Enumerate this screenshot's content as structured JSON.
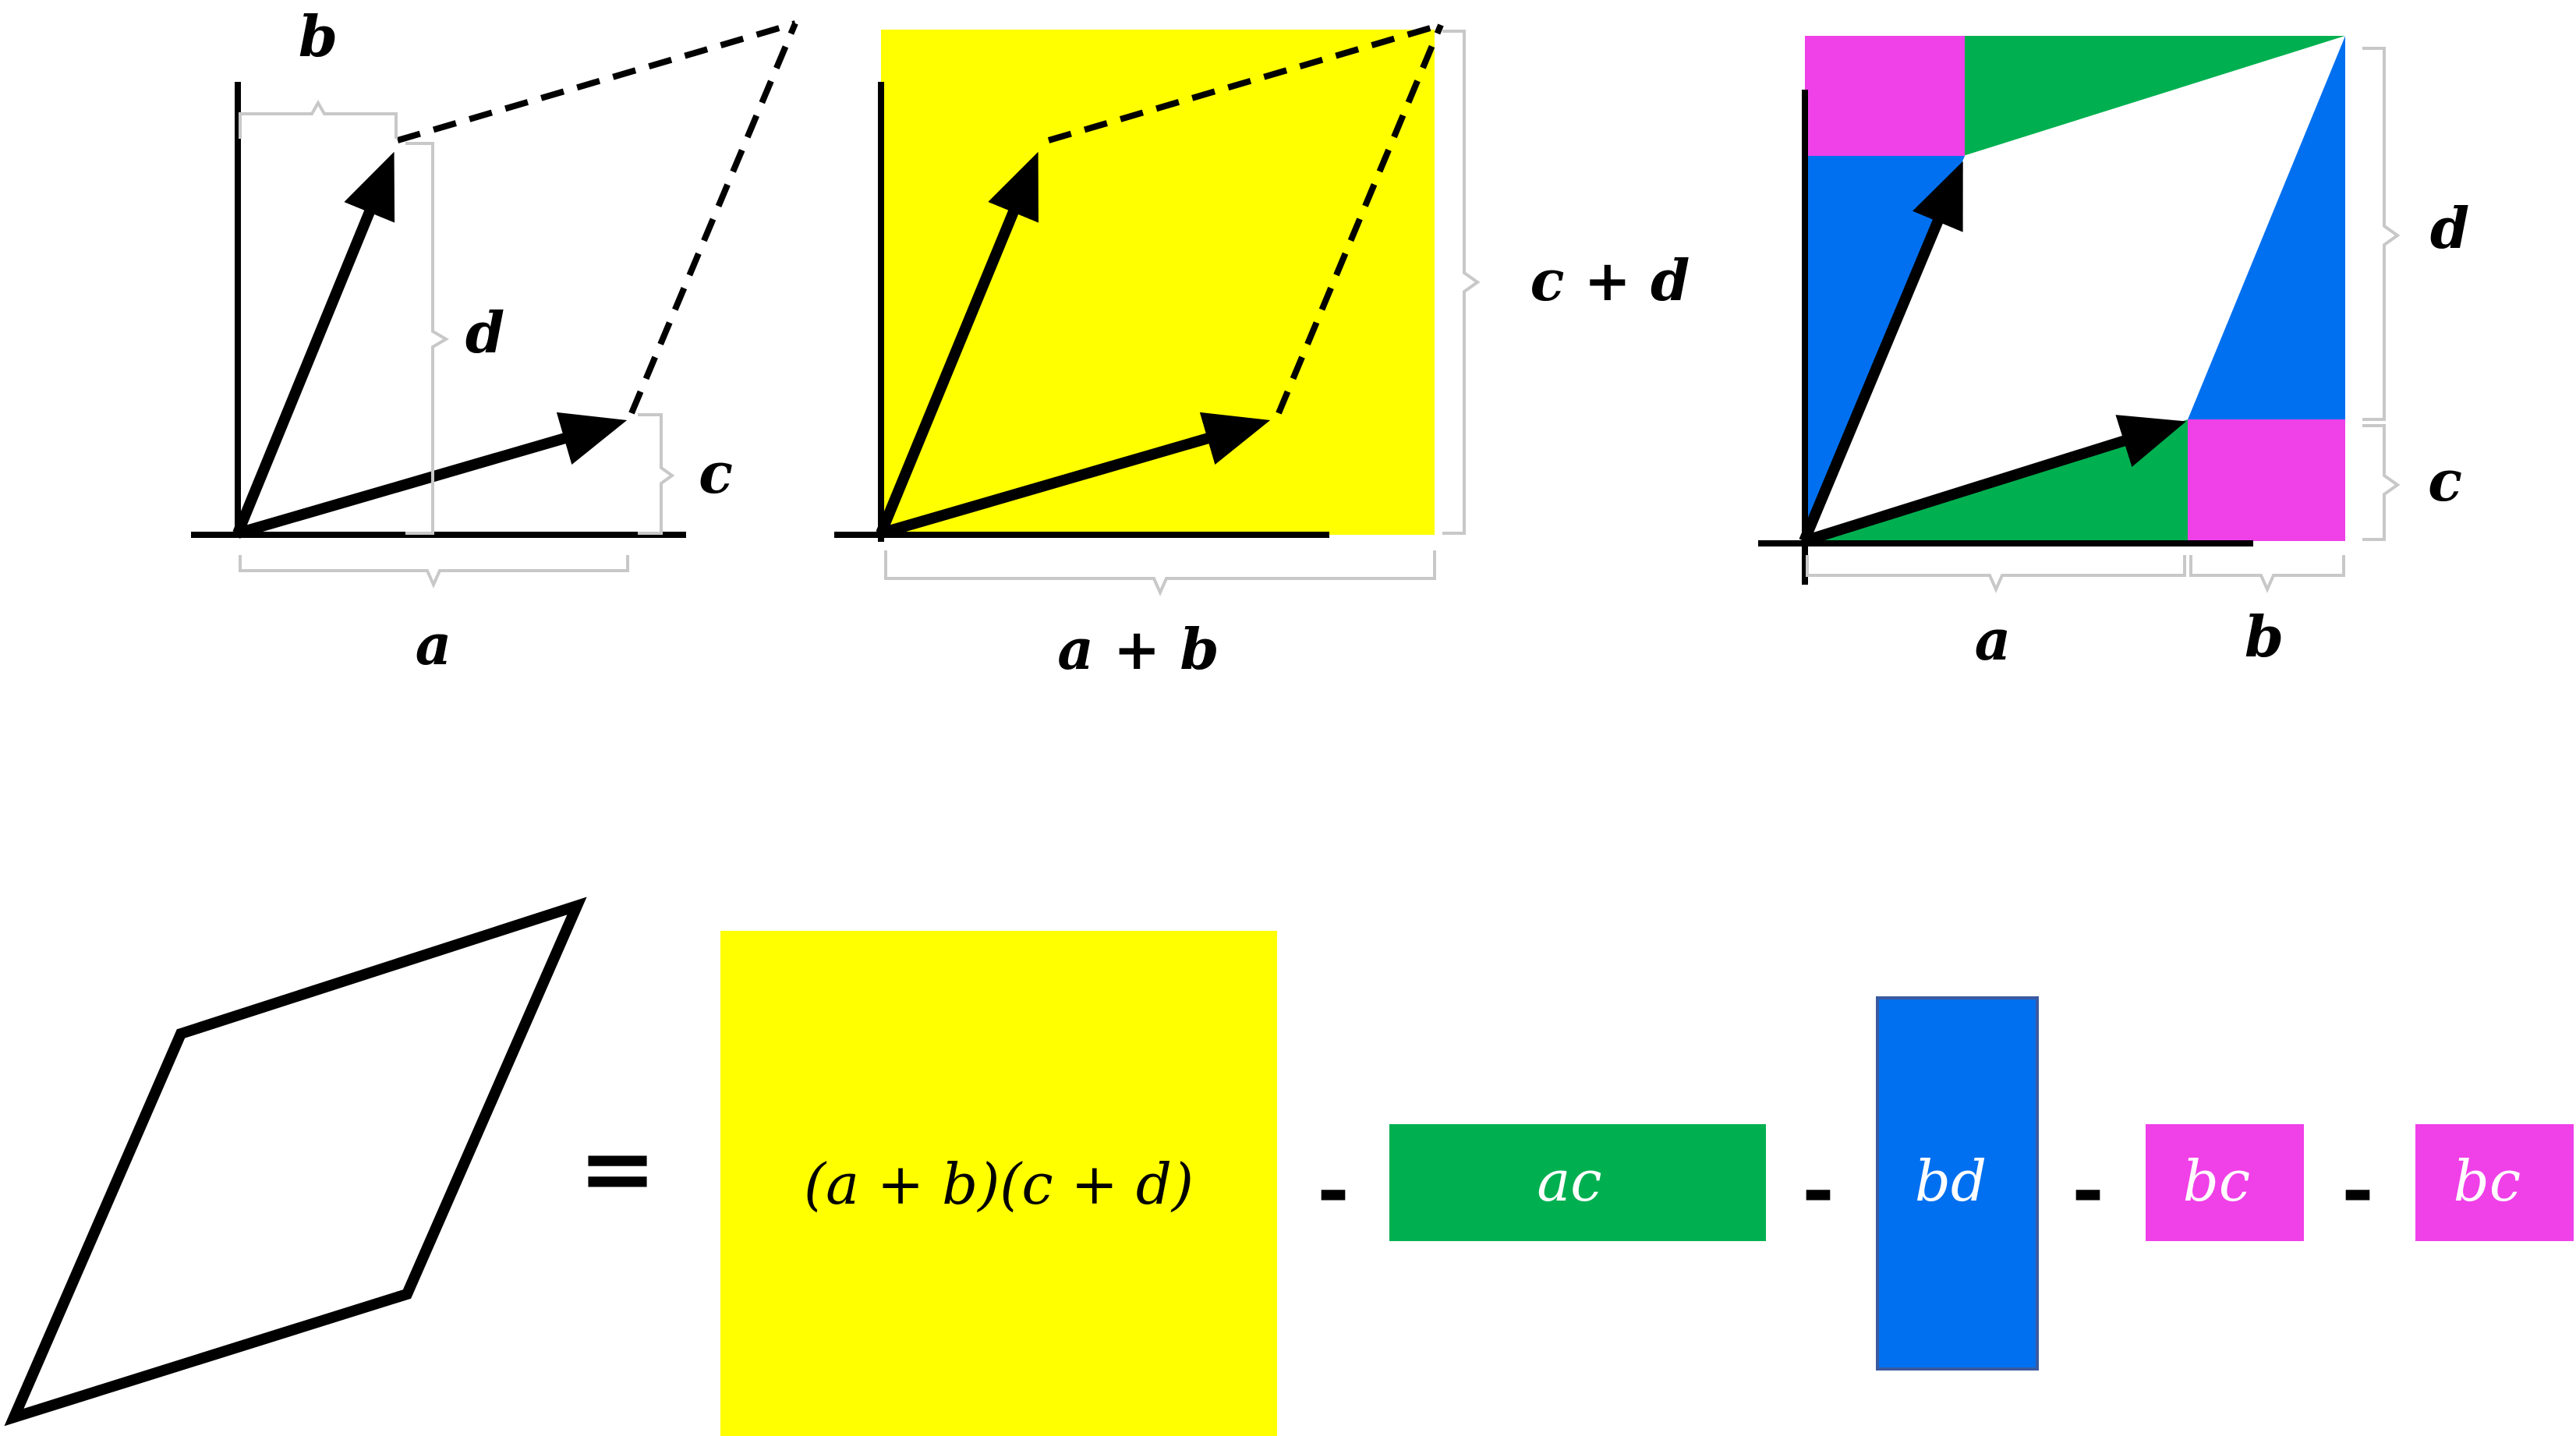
{
  "panel1": {
    "label_a": "a",
    "label_b": "b",
    "label_c": "c",
    "label_d": "d"
  },
  "panel2": {
    "label_a_plus_b": "a + b",
    "label_c_plus_d": "c + d"
  },
  "panel3": {
    "label_a": "a",
    "label_b": "b",
    "label_c": "c",
    "label_d": "d"
  },
  "equation": {
    "equals": "=",
    "minus": "-",
    "term_total": "(a + b)(c + d)",
    "term_ac": "ac",
    "term_bd": "bd",
    "term_bc_1": "bc",
    "term_bc_2": "bc"
  },
  "colors": {
    "yellow": "#ffff00",
    "green": "#00b050",
    "blue": "#0070f0",
    "magenta": "#f040e8",
    "black": "#000000"
  }
}
